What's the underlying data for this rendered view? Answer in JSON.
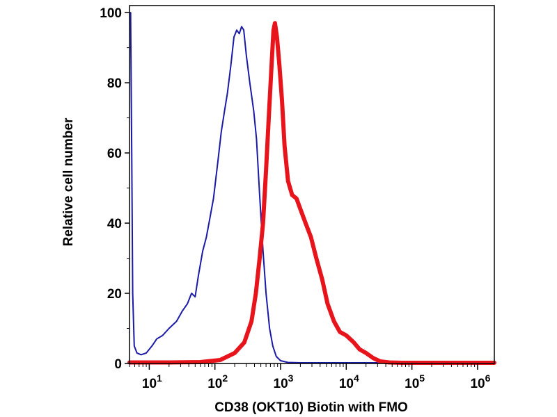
{
  "chart_data": {
    "type": "line",
    "xlabel": "CD38 (OKT10) Biotin  with FMO",
    "ylabel": "Relative cell number",
    "x_scale": "log",
    "xlim": [
      5,
      1800000
    ],
    "ylim": [
      0,
      102
    ],
    "x_ticks": [
      {
        "value": 10,
        "base": "10",
        "exp": "1"
      },
      {
        "value": 100,
        "base": "10",
        "exp": "2"
      },
      {
        "value": 1000,
        "base": "10",
        "exp": "3"
      },
      {
        "value": 10000,
        "base": "10",
        "exp": "4"
      },
      {
        "value": 100000,
        "base": "10",
        "exp": "5"
      },
      {
        "value": 1000000,
        "base": "10",
        "exp": "6"
      }
    ],
    "y_ticks": [
      {
        "value": 0,
        "label": "0"
      },
      {
        "value": 20,
        "label": "20"
      },
      {
        "value": 40,
        "label": "40"
      },
      {
        "value": 60,
        "label": "60"
      },
      {
        "value": 80,
        "label": "80"
      },
      {
        "value": 100,
        "label": "100"
      }
    ],
    "grid": false,
    "series": [
      {
        "color": "#1a1aa6",
        "line_width": 2,
        "points": [
          [
            5.2,
            100
          ],
          [
            5.4,
            60
          ],
          [
            5.6,
            20
          ],
          [
            5.9,
            5
          ],
          [
            6.5,
            3
          ],
          [
            7.5,
            2.5
          ],
          [
            9,
            3
          ],
          [
            11,
            5
          ],
          [
            13,
            7
          ],
          [
            16,
            8
          ],
          [
            20,
            10
          ],
          [
            26,
            12
          ],
          [
            32,
            15
          ],
          [
            38,
            17
          ],
          [
            44,
            20
          ],
          [
            50,
            19
          ],
          [
            56,
            25
          ],
          [
            65,
            32
          ],
          [
            74,
            36
          ],
          [
            85,
            42
          ],
          [
            95,
            47
          ],
          [
            110,
            57
          ],
          [
            125,
            66
          ],
          [
            140,
            72
          ],
          [
            155,
            77
          ],
          [
            175,
            85
          ],
          [
            195,
            93
          ],
          [
            215,
            95
          ],
          [
            235,
            94
          ],
          [
            255,
            96
          ],
          [
            275,
            95
          ],
          [
            300,
            88
          ],
          [
            340,
            80
          ],
          [
            390,
            72
          ],
          [
            430,
            64
          ],
          [
            480,
            48
          ],
          [
            540,
            32
          ],
          [
            600,
            20
          ],
          [
            680,
            10
          ],
          [
            760,
            5
          ],
          [
            860,
            2
          ],
          [
            1000,
            0.8
          ],
          [
            1300,
            0.3
          ],
          [
            2000,
            0.2
          ],
          [
            10000,
            0.2
          ],
          [
            100000,
            0.2
          ],
          [
            1000000,
            0.2
          ],
          [
            1800000,
            0.2
          ]
        ]
      },
      {
        "color": "#e8141c",
        "line_width": 6,
        "points": [
          [
            5,
            0.3
          ],
          [
            20,
            0.3
          ],
          [
            60,
            0.4
          ],
          [
            120,
            1
          ],
          [
            200,
            3
          ],
          [
            280,
            6
          ],
          [
            360,
            12
          ],
          [
            420,
            20
          ],
          [
            480,
            30
          ],
          [
            540,
            40
          ],
          [
            600,
            55
          ],
          [
            660,
            70
          ],
          [
            720,
            83
          ],
          [
            780,
            95
          ],
          [
            820,
            97
          ],
          [
            880,
            93
          ],
          [
            960,
            85
          ],
          [
            1050,
            75
          ],
          [
            1150,
            62
          ],
          [
            1300,
            52
          ],
          [
            1500,
            48
          ],
          [
            1750,
            47
          ],
          [
            2000,
            44
          ],
          [
            2400,
            40
          ],
          [
            2900,
            36
          ],
          [
            3500,
            30
          ],
          [
            4300,
            24
          ],
          [
            5200,
            17
          ],
          [
            6500,
            12
          ],
          [
            8000,
            9
          ],
          [
            10000,
            8
          ],
          [
            13000,
            6
          ],
          [
            16000,
            4
          ],
          [
            20000,
            3
          ],
          [
            26000,
            1.5
          ],
          [
            33000,
            0.6
          ],
          [
            45000,
            0.3
          ],
          [
            70000,
            0.2
          ],
          [
            300000,
            0.2
          ],
          [
            1800000,
            0.2
          ]
        ]
      }
    ]
  }
}
